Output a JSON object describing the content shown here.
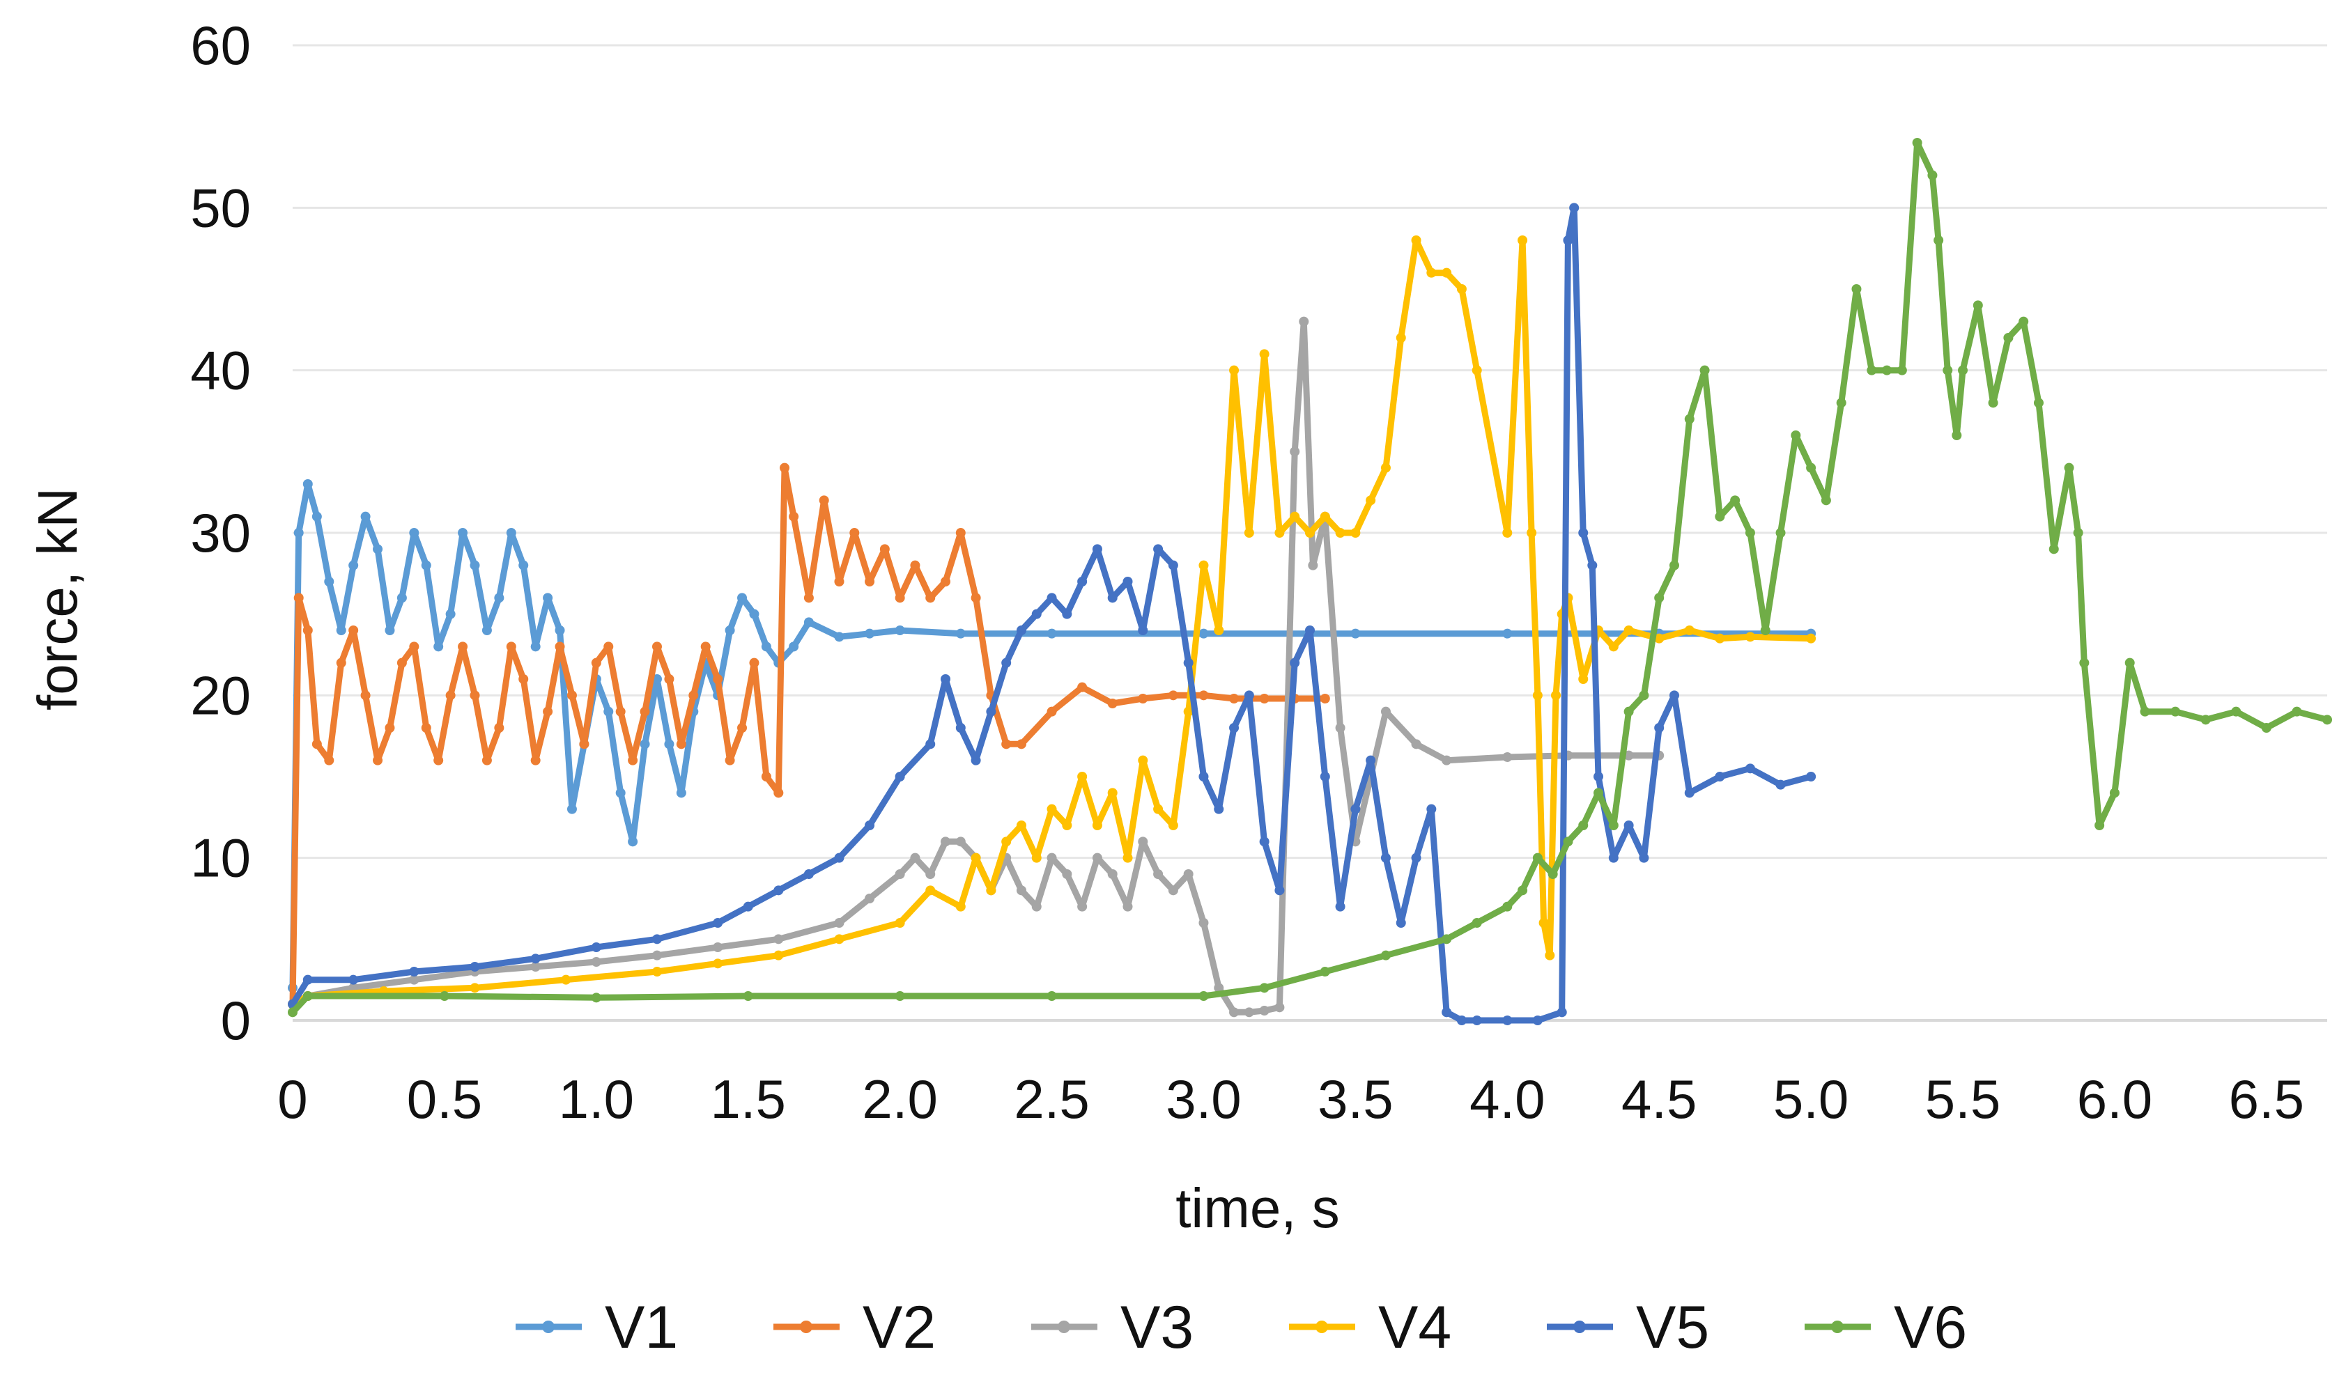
{
  "chart_data": {
    "type": "line",
    "title": "",
    "xlabel": "time, s",
    "ylabel": "force, kN",
    "xlim": [
      0,
      6.7
    ],
    "ylim": [
      0,
      60
    ],
    "x_ticks": [
      "0",
      "0.5",
      "1.0",
      "1.5",
      "2.0",
      "2.5",
      "3.0",
      "3.5",
      "4.0",
      "4.5",
      "5.0",
      "5.5",
      "6.0",
      "6.5"
    ],
    "x_tick_values": [
      0,
      0.5,
      1.0,
      1.5,
      2.0,
      2.5,
      3.0,
      3.5,
      4.0,
      4.5,
      5.0,
      5.5,
      6.0,
      6.5
    ],
    "y_ticks": [
      "0",
      "10",
      "20",
      "30",
      "40",
      "50",
      "60"
    ],
    "y_tick_values": [
      0,
      10,
      20,
      30,
      40,
      50,
      60
    ],
    "grid": true,
    "legend_position": "bottom",
    "series": [
      {
        "name": "V1",
        "color": "#5b9bd5",
        "x": [
          0,
          0.02,
          0.05,
          0.08,
          0.12,
          0.16,
          0.2,
          0.24,
          0.28,
          0.32,
          0.36,
          0.4,
          0.44,
          0.48,
          0.52,
          0.56,
          0.6,
          0.64,
          0.68,
          0.72,
          0.76,
          0.8,
          0.84,
          0.88,
          0.92,
          0.96,
          1.0,
          1.04,
          1.08,
          1.12,
          1.16,
          1.2,
          1.24,
          1.28,
          1.32,
          1.36,
          1.4,
          1.44,
          1.48,
          1.52,
          1.56,
          1.6,
          1.65,
          1.7,
          1.8,
          1.9,
          2.0,
          2.2,
          2.5,
          3.0,
          3.5,
          4.0,
          4.5,
          5.0
        ],
        "y": [
          2,
          30,
          33,
          31,
          27,
          24,
          28,
          31,
          29,
          24,
          26,
          30,
          28,
          23,
          25,
          30,
          28,
          24,
          26,
          30,
          28,
          23,
          26,
          24,
          13,
          17,
          21,
          19,
          14,
          11,
          17,
          21,
          17,
          14,
          19,
          22,
          20,
          24,
          26,
          25,
          23,
          22,
          23,
          24.5,
          23.6,
          23.8,
          24,
          23.8,
          23.8,
          23.8,
          23.8,
          23.8,
          23.8,
          23.8
        ]
      },
      {
        "name": "V2",
        "color": "#ed7d31",
        "x": [
          0,
          0.02,
          0.05,
          0.08,
          0.12,
          0.16,
          0.2,
          0.24,
          0.28,
          0.32,
          0.36,
          0.4,
          0.44,
          0.48,
          0.52,
          0.56,
          0.6,
          0.64,
          0.68,
          0.72,
          0.76,
          0.8,
          0.84,
          0.88,
          0.92,
          0.96,
          1.0,
          1.04,
          1.08,
          1.12,
          1.16,
          1.2,
          1.24,
          1.28,
          1.32,
          1.36,
          1.4,
          1.44,
          1.48,
          1.52,
          1.56,
          1.6,
          1.62,
          1.65,
          1.7,
          1.75,
          1.8,
          1.85,
          1.9,
          1.95,
          2.0,
          2.05,
          2.1,
          2.15,
          2.2,
          2.25,
          2.3,
          2.35,
          2.4,
          2.5,
          2.6,
          2.7,
          2.8,
          2.9,
          3.0,
          3.1,
          3.2,
          3.3,
          3.4
        ],
        "y": [
          1,
          26,
          24,
          17,
          16,
          22,
          24,
          20,
          16,
          18,
          22,
          23,
          18,
          16,
          20,
          23,
          20,
          16,
          18,
          23,
          21,
          16,
          19,
          23,
          20,
          17,
          22,
          23,
          19,
          16,
          19,
          23,
          21,
          17,
          20,
          23,
          21,
          16,
          18,
          22,
          15,
          14,
          34,
          31,
          26,
          32,
          27,
          30,
          27,
          29,
          26,
          28,
          26,
          27,
          30,
          26,
          20,
          17,
          17,
          19,
          20.5,
          19.5,
          19.8,
          20,
          20,
          19.8,
          19.8,
          19.8,
          19.8
        ]
      },
      {
        "name": "V3",
        "color": "#a5a5a5",
        "x": [
          0,
          0.05,
          0.2,
          0.4,
          0.6,
          0.8,
          1.0,
          1.2,
          1.4,
          1.6,
          1.8,
          1.9,
          2.0,
          2.05,
          2.1,
          2.15,
          2.2,
          2.25,
          2.3,
          2.35,
          2.4,
          2.45,
          2.5,
          2.55,
          2.6,
          2.65,
          2.7,
          2.75,
          2.8,
          2.85,
          2.9,
          2.95,
          3.0,
          3.05,
          3.1,
          3.15,
          3.2,
          3.25,
          3.3,
          3.33,
          3.36,
          3.4,
          3.45,
          3.5,
          3.6,
          3.7,
          3.8,
          4.0,
          4.2,
          4.4,
          4.5
        ],
        "y": [
          1,
          1.5,
          2,
          2.5,
          3,
          3.3,
          3.6,
          4,
          4.5,
          5,
          6,
          7.5,
          9,
          10,
          9,
          11,
          11,
          10,
          8,
          10,
          8,
          7,
          10,
          9,
          7,
          10,
          9,
          7,
          11,
          9,
          8,
          9,
          6,
          2,
          0.5,
          0.5,
          0.6,
          0.8,
          35,
          43,
          28,
          31,
          18,
          11,
          19,
          17,
          16,
          16.2,
          16.3,
          16.3,
          16.3
        ]
      },
      {
        "name": "V4",
        "color": "#ffc000",
        "x": [
          0,
          0.05,
          0.3,
          0.6,
          0.9,
          1.2,
          1.4,
          1.6,
          1.8,
          2.0,
          2.1,
          2.2,
          2.25,
          2.3,
          2.35,
          2.4,
          2.45,
          2.5,
          2.55,
          2.6,
          2.65,
          2.7,
          2.75,
          2.8,
          2.85,
          2.9,
          2.95,
          3.0,
          3.05,
          3.1,
          3.15,
          3.2,
          3.25,
          3.3,
          3.35,
          3.4,
          3.45,
          3.5,
          3.55,
          3.6,
          3.65,
          3.7,
          3.75,
          3.8,
          3.85,
          3.9,
          4.0,
          4.05,
          4.08,
          4.1,
          4.12,
          4.14,
          4.16,
          4.18,
          4.2,
          4.25,
          4.3,
          4.35,
          4.4,
          4.5,
          4.6,
          4.7,
          4.8,
          5.0
        ],
        "y": [
          1,
          1.5,
          1.8,
          2,
          2.5,
          3,
          3.5,
          4,
          5,
          6,
          8,
          7,
          10,
          8,
          11,
          12,
          10,
          13,
          12,
          15,
          12,
          14,
          10,
          16,
          13,
          12,
          19,
          28,
          24,
          40,
          30,
          41,
          30,
          31,
          30,
          31,
          30,
          30,
          32,
          34,
          42,
          48,
          46,
          46,
          45,
          40,
          30,
          48,
          30,
          20,
          6,
          4,
          20,
          25,
          26,
          21,
          24,
          23,
          24,
          23.5,
          24,
          23.5,
          23.6,
          23.5
        ]
      },
      {
        "name": "V5",
        "color": "#4472c4",
        "x": [
          0,
          0.05,
          0.2,
          0.4,
          0.6,
          0.8,
          1.0,
          1.2,
          1.4,
          1.5,
          1.6,
          1.7,
          1.8,
          1.9,
          2.0,
          2.1,
          2.15,
          2.2,
          2.25,
          2.3,
          2.35,
          2.4,
          2.45,
          2.5,
          2.55,
          2.6,
          2.65,
          2.7,
          2.75,
          2.8,
          2.85,
          2.9,
          2.95,
          3.0,
          3.05,
          3.1,
          3.15,
          3.2,
          3.25,
          3.3,
          3.35,
          3.4,
          3.45,
          3.5,
          3.55,
          3.6,
          3.65,
          3.7,
          3.75,
          3.8,
          3.85,
          3.9,
          4.0,
          4.1,
          4.18,
          4.2,
          4.22,
          4.25,
          4.28,
          4.3,
          4.35,
          4.4,
          4.45,
          4.5,
          4.55,
          4.6,
          4.7,
          4.8,
          4.9,
          5.0
        ],
        "y": [
          1,
          2.5,
          2.5,
          3,
          3.3,
          3.8,
          4.5,
          5,
          6,
          7,
          8,
          9,
          10,
          12,
          15,
          17,
          21,
          18,
          16,
          19,
          22,
          24,
          25,
          26,
          25,
          27,
          29,
          26,
          27,
          24,
          29,
          28,
          22,
          15,
          13,
          18,
          20,
          11,
          8,
          22,
          24,
          15,
          7,
          13,
          16,
          10,
          6,
          10,
          13,
          0.5,
          0,
          0,
          0,
          0,
          0.5,
          48,
          50,
          30,
          28,
          15,
          10,
          12,
          10,
          18,
          20,
          14,
          15,
          15.5,
          14.5,
          15
        ]
      },
      {
        "name": "V6",
        "color": "#70ad47",
        "x": [
          0,
          0.05,
          0.5,
          1.0,
          1.5,
          2.0,
          2.5,
          3.0,
          3.2,
          3.4,
          3.6,
          3.8,
          3.9,
          4.0,
          4.05,
          4.1,
          4.15,
          4.2,
          4.25,
          4.3,
          4.35,
          4.4,
          4.45,
          4.5,
          4.55,
          4.6,
          4.65,
          4.7,
          4.75,
          4.8,
          4.85,
          4.9,
          4.95,
          5.0,
          5.05,
          5.1,
          5.15,
          5.2,
          5.25,
          5.3,
          5.35,
          5.4,
          5.42,
          5.45,
          5.48,
          5.5,
          5.55,
          5.6,
          5.65,
          5.7,
          5.75,
          5.8,
          5.85,
          5.88,
          5.9,
          5.95,
          6.0,
          6.05,
          6.1,
          6.2,
          6.3,
          6.4,
          6.5,
          6.6,
          6.7
        ],
        "y": [
          0.5,
          1.5,
          1.5,
          1.4,
          1.5,
          1.5,
          1.5,
          1.5,
          2,
          3,
          4,
          5,
          6,
          7,
          8,
          10,
          9,
          11,
          12,
          14,
          12,
          19,
          20,
          26,
          28,
          37,
          40,
          31,
          32,
          30,
          24,
          30,
          36,
          34,
          32,
          38,
          45,
          40,
          40,
          40,
          54,
          52,
          48,
          40,
          36,
          40,
          44,
          38,
          42,
          43,
          38,
          29,
          34,
          30,
          22,
          12,
          14,
          22,
          19,
          19,
          18.5,
          19,
          18,
          19,
          18.5
        ]
      }
    ]
  }
}
